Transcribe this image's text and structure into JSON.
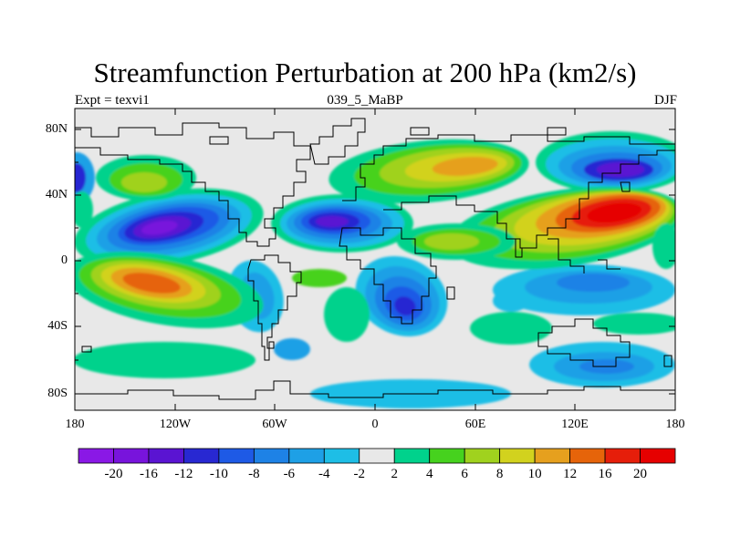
{
  "title": "Streamfunction Perturbation at 200 hPa (km2/s)",
  "subtitle_left": "Expt = texvi1",
  "subtitle_center": "039_5_MaBP",
  "subtitle_right": "DJF",
  "lat_labels": [
    "80N",
    "40N",
    "0",
    "40S",
    "80S"
  ],
  "lon_labels": [
    "180",
    "120W",
    "60W",
    "0",
    "60E",
    "120E",
    "180"
  ],
  "colorbar": {
    "labels": [
      "-20",
      "-16",
      "-12",
      "-10",
      "-8",
      "-6",
      "-4",
      "-2",
      "2",
      "4",
      "6",
      "8",
      "10",
      "12",
      "16",
      "20"
    ],
    "colors": [
      "#8a18e6",
      "#7814dc",
      "#5a14d2",
      "#2828d2",
      "#1e5ae6",
      "#1e82e6",
      "#1ea0e6",
      "#1ebee6",
      "#e8e8e8",
      "#00d28c",
      "#46d21e",
      "#a0d21e",
      "#d2d21e",
      "#e6a01e",
      "#e6640a",
      "#e61e0a",
      "#e60000"
    ]
  },
  "map_colors": {
    "ocean_background": "#e8e8e8",
    "coastline": "#000000"
  }
}
